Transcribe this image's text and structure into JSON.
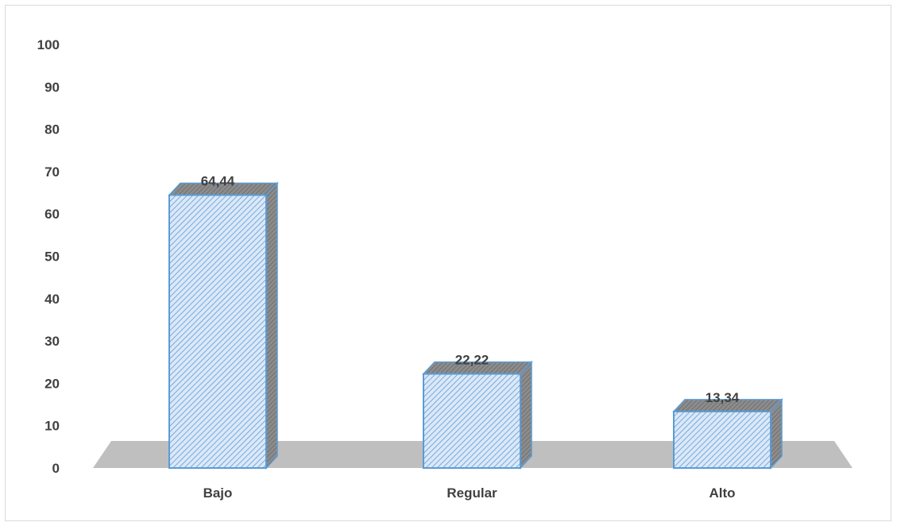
{
  "chart_data": {
    "type": "bar",
    "style": "3d-column",
    "title": "",
    "xlabel": "",
    "ylabel": "",
    "categories": [
      "Bajo",
      "Regular",
      "Alto"
    ],
    "values": [
      64.44,
      22.22,
      13.34
    ],
    "data_labels": [
      "64,44",
      "22,22",
      "13,34"
    ],
    "ylim": [
      0,
      100
    ],
    "yticks": [
      0,
      10,
      20,
      30,
      40,
      50,
      60,
      70,
      80,
      90,
      100
    ],
    "ytick_labels": [
      "0",
      "10",
      "20",
      "30",
      "40",
      "50",
      "60",
      "70",
      "80",
      "90",
      "100"
    ],
    "grid": false,
    "legend": "none",
    "colors": {
      "bar_fill": "#dbe8f8",
      "bar_hatch": "#5b9bd5",
      "bar_edge": "#5b9bd5",
      "bar_top": "#8c8c8c",
      "bar_side": "#7f7f7f",
      "floor": "#bfbfbf",
      "text": "#404040"
    }
  }
}
